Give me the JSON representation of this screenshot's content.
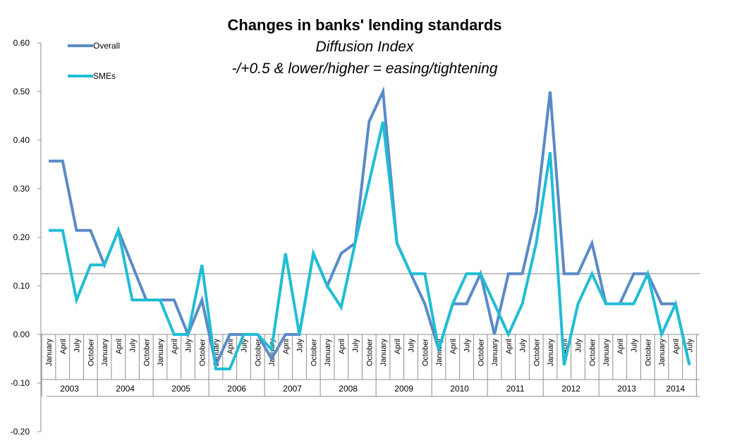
{
  "chart_data": {
    "type": "line",
    "title": "Changes in banks' lending standards",
    "subtitle": "Diffusion Index",
    "subtitle2": "-/+0.5 & lower/higher = easing/tightening",
    "ylim": [
      -0.2,
      0.6
    ],
    "yticks": [
      "0.60",
      "0.50",
      "0.40",
      "0.30",
      "0.20",
      "0.10",
      "0.00",
      "-0.10",
      "-0.20"
    ],
    "ytick_values": [
      0.6,
      0.5,
      0.4,
      0.3,
      0.2,
      0.1,
      0.0,
      -0.1,
      -0.2
    ],
    "reference_line": 0.125,
    "categories": [
      "January",
      "April",
      "July",
      "October",
      "January",
      "April",
      "July",
      "October",
      "January",
      "April",
      "July",
      "October",
      "January",
      "April",
      "July",
      "October",
      "January",
      "April",
      "July",
      "October",
      "January",
      "April",
      "July",
      "October",
      "January",
      "April",
      "July",
      "October",
      "January",
      "April",
      "July",
      "October",
      "January",
      "April",
      "July",
      "October",
      "January",
      "April",
      "July",
      "October",
      "January",
      "April",
      "July",
      "October",
      "January",
      "April",
      "July"
    ],
    "years": [
      {
        "label": "2003",
        "count": 4
      },
      {
        "label": "2004",
        "count": 4
      },
      {
        "label": "2005",
        "count": 4
      },
      {
        "label": "2006",
        "count": 4
      },
      {
        "label": "2007",
        "count": 4
      },
      {
        "label": "2008",
        "count": 4
      },
      {
        "label": "2009",
        "count": 4
      },
      {
        "label": "2010",
        "count": 4
      },
      {
        "label": "2011",
        "count": 4
      },
      {
        "label": "2012",
        "count": 4
      },
      {
        "label": "2013",
        "count": 4
      },
      {
        "label": "2014",
        "count": 3
      }
    ],
    "series": [
      {
        "name": "Overall",
        "color": "#5b8ac6",
        "values": [
          0.357,
          0.357,
          0.214,
          0.214,
          0.143,
          0.214,
          0.143,
          0.071,
          0.071,
          0.071,
          0.0,
          0.071,
          -0.063,
          0.0,
          0.0,
          0.0,
          -0.05,
          0.0,
          0.0,
          0.167,
          0.1,
          0.167,
          0.188,
          0.438,
          0.5,
          0.188,
          0.125,
          0.063,
          -0.031,
          0.063,
          0.063,
          0.125,
          0.0,
          0.125,
          0.125,
          0.25,
          0.5,
          0.125,
          0.125,
          0.188,
          0.063,
          0.063,
          0.125,
          0.125,
          0.063,
          0.063,
          -0.063
        ]
      },
      {
        "name": "SMEs",
        "color": "#20bdd4",
        "values": [
          0.214,
          0.214,
          0.071,
          0.143,
          0.143,
          0.214,
          0.071,
          0.071,
          0.071,
          0.0,
          0.0,
          0.143,
          -0.071,
          -0.071,
          0.0,
          0.0,
          -0.031,
          0.167,
          0.0,
          0.167,
          0.1,
          0.056,
          0.188,
          0.313,
          0.438,
          0.188,
          0.125,
          0.125,
          -0.031,
          0.063,
          0.125,
          0.125,
          0.063,
          0.0,
          0.063,
          0.188,
          0.375,
          -0.063,
          0.063,
          0.125,
          0.063,
          0.063,
          0.063,
          0.125,
          0.0,
          0.063,
          -0.063
        ]
      }
    ],
    "legend_position": "top-left"
  }
}
